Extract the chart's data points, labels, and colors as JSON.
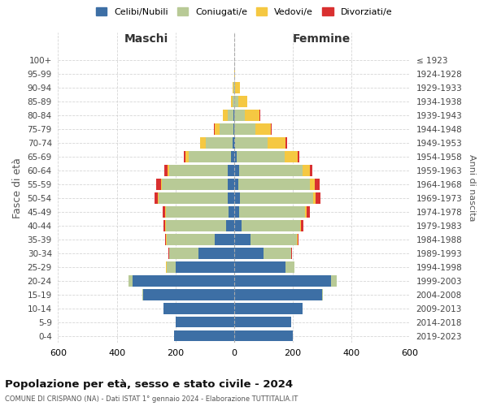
{
  "age_groups": [
    "0-4",
    "5-9",
    "10-14",
    "15-19",
    "20-24",
    "25-29",
    "30-34",
    "35-39",
    "40-44",
    "45-49",
    "50-54",
    "55-59",
    "60-64",
    "65-69",
    "70-74",
    "75-79",
    "80-84",
    "85-89",
    "90-94",
    "95-99",
    "100+"
  ],
  "birth_years": [
    "2019-2023",
    "2014-2018",
    "2009-2013",
    "2004-2008",
    "1999-2003",
    "1994-1998",
    "1989-1993",
    "1984-1988",
    "1979-1983",
    "1974-1978",
    "1969-1973",
    "1964-1968",
    "1959-1963",
    "1954-1958",
    "1949-1953",
    "1944-1948",
    "1939-1943",
    "1934-1938",
    "1929-1933",
    "1924-1928",
    "≤ 1923"
  ],
  "colors": {
    "celibi": "#3d6fa5",
    "coniugati": "#b8ca96",
    "vedovi": "#f5c842",
    "divorziati": "#d93030"
  },
  "maschi": {
    "celibi": [
      205,
      200,
      240,
      310,
      345,
      200,
      120,
      65,
      28,
      18,
      22,
      20,
      20,
      10,
      5,
      3,
      2,
      0,
      0,
      0,
      0
    ],
    "coniugati": [
      0,
      0,
      0,
      2,
      15,
      30,
      100,
      165,
      205,
      215,
      235,
      225,
      200,
      145,
      90,
      45,
      20,
      5,
      2,
      0,
      0
    ],
    "vedovi": [
      0,
      0,
      0,
      0,
      0,
      1,
      1,
      1,
      2,
      2,
      3,
      5,
      8,
      12,
      20,
      18,
      15,
      5,
      2,
      0,
      0
    ],
    "divorziati": [
      0,
      0,
      0,
      0,
      0,
      1,
      2,
      3,
      5,
      8,
      12,
      15,
      10,
      5,
      2,
      2,
      0,
      0,
      0,
      0,
      0
    ]
  },
  "femmine": {
    "celibi": [
      200,
      195,
      235,
      300,
      330,
      175,
      100,
      55,
      25,
      18,
      20,
      15,
      18,
      8,
      5,
      2,
      2,
      0,
      0,
      0,
      0
    ],
    "coniugati": [
      0,
      0,
      0,
      2,
      20,
      30,
      95,
      160,
      200,
      225,
      250,
      245,
      215,
      165,
      110,
      70,
      35,
      15,
      5,
      2,
      0
    ],
    "vedovi": [
      0,
      0,
      0,
      0,
      0,
      1,
      1,
      2,
      3,
      5,
      8,
      15,
      25,
      45,
      60,
      55,
      50,
      30,
      15,
      2,
      0
    ],
    "divorziati": [
      0,
      0,
      0,
      0,
      0,
      1,
      2,
      4,
      8,
      10,
      18,
      18,
      10,
      5,
      5,
      2,
      2,
      0,
      0,
      0,
      0
    ]
  },
  "title": "Popolazione per età, sesso e stato civile - 2024",
  "subtitle": "COMUNE DI CRISPANO (NA) - Dati ISTAT 1° gennaio 2024 - Elaborazione TUTTITALIA.IT",
  "xlabel_left": "Maschi",
  "xlabel_right": "Femmine",
  "ylabel_left": "Fasce di età",
  "ylabel_right": "Anni di nascita",
  "xlim": 600,
  "bg_color": "#ffffff",
  "grid_color": "#cccccc"
}
